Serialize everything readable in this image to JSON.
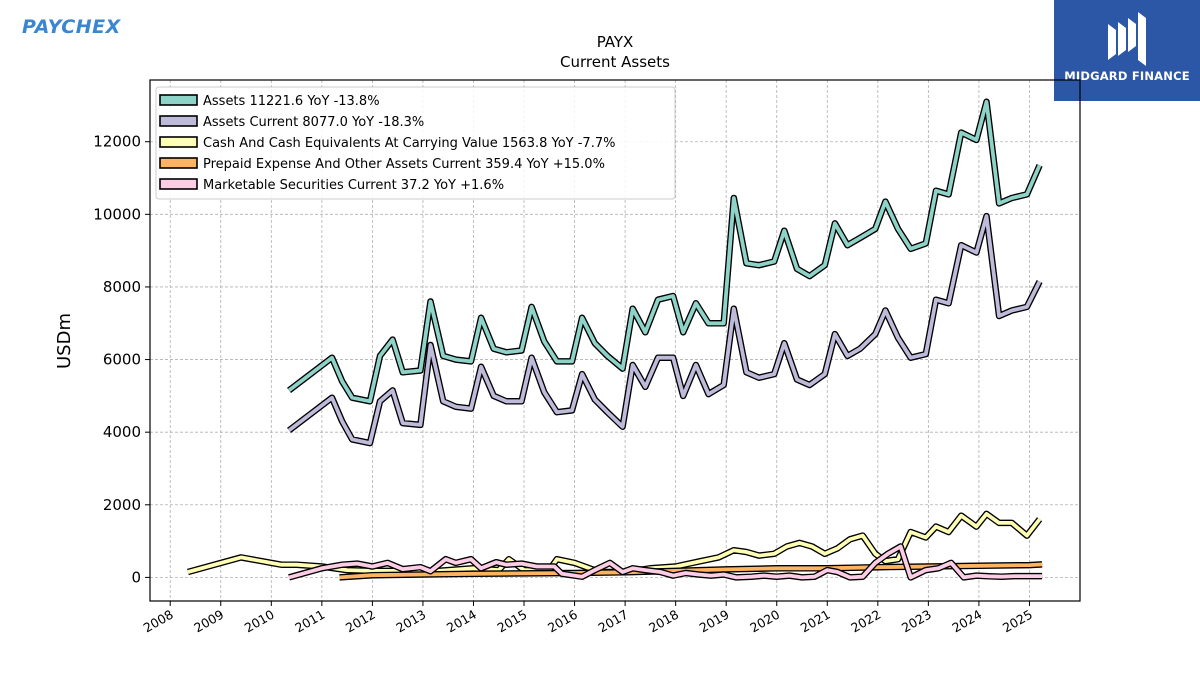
{
  "brand": {
    "left_logo_text": "PAYCHEX",
    "right_logo_text": "MIDGARD FINANCE",
    "right_logo_color": "#2c57a7",
    "left_logo_color": "#3a86d0"
  },
  "chart_data": {
    "type": "line",
    "title": "PAYX",
    "subtitle": "Current  Assets",
    "ylabel": "USDm",
    "xlabel": "",
    "xlim": [
      2007.6,
      2026.0
    ],
    "ylim": [
      -650,
      13700
    ],
    "x_ticks": [
      2008,
      2009,
      2010,
      2011,
      2012,
      2013,
      2014,
      2015,
      2016,
      2017,
      2018,
      2019,
      2020,
      2021,
      2022,
      2023,
      2024,
      2025
    ],
    "y_ticks": [
      0,
      2000,
      4000,
      6000,
      8000,
      10000,
      12000
    ],
    "grid": true,
    "legend_position": "top-left",
    "series": [
      {
        "name": "Assets",
        "legend_label": "Assets  11221.6 YoY -13.8%",
        "color": "#8dd3c7",
        "x": [
          2010.35,
          2011.2,
          2011.4,
          2011.6,
          2011.95,
          2012.15,
          2012.4,
          2012.6,
          2012.95,
          2013.15,
          2013.4,
          2013.65,
          2013.95,
          2014.15,
          2014.4,
          2014.65,
          2014.95,
          2015.15,
          2015.4,
          2015.65,
          2015.95,
          2016.15,
          2016.4,
          2016.65,
          2016.95,
          2017.15,
          2017.4,
          2017.65,
          2017.95,
          2018.15,
          2018.4,
          2018.65,
          2018.95,
          2019.15,
          2019.4,
          2019.65,
          2019.95,
          2020.15,
          2020.4,
          2020.65,
          2020.95,
          2021.15,
          2021.4,
          2021.65,
          2021.95,
          2022.15,
          2022.4,
          2022.65,
          2022.95,
          2023.15,
          2023.4,
          2023.65,
          2023.95,
          2024.15,
          2024.4,
          2024.65,
          2024.95,
          2025.2
        ],
        "values": [
          5150,
          6050,
          5400,
          4950,
          4850,
          6100,
          6550,
          5650,
          5700,
          7600,
          6100,
          6000,
          5950,
          7150,
          6300,
          6200,
          6250,
          7450,
          6500,
          5950,
          5950,
          7150,
          6450,
          6100,
          5750,
          7400,
          6750,
          7650,
          7750,
          6750,
          7550,
          7000,
          7000,
          10450,
          8650,
          8600,
          8700,
          9550,
          8500,
          8300,
          8600,
          9750,
          9150,
          9350,
          9600,
          10350,
          9600,
          9050,
          9200,
          10650,
          10550,
          12250,
          12050,
          13100,
          10300,
          10450,
          10550,
          11350
        ]
      },
      {
        "name": "Assets Current",
        "legend_label": "Assets Current  8077.0 YoY -18.3%",
        "color": "#bebada",
        "x": [
          2010.35,
          2011.2,
          2011.4,
          2011.6,
          2011.95,
          2012.15,
          2012.4,
          2012.6,
          2012.95,
          2013.15,
          2013.4,
          2013.65,
          2013.95,
          2014.15,
          2014.4,
          2014.65,
          2014.95,
          2015.15,
          2015.4,
          2015.65,
          2015.95,
          2016.15,
          2016.4,
          2016.65,
          2016.95,
          2017.15,
          2017.4,
          2017.65,
          2017.95,
          2018.15,
          2018.4,
          2018.65,
          2018.95,
          2019.15,
          2019.4,
          2019.65,
          2019.95,
          2020.15,
          2020.4,
          2020.65,
          2020.95,
          2021.15,
          2021.4,
          2021.65,
          2021.95,
          2022.15,
          2022.4,
          2022.65,
          2022.95,
          2023.15,
          2023.4,
          2023.65,
          2023.95,
          2024.15,
          2024.4,
          2024.65,
          2024.95,
          2025.2
        ],
        "values": [
          4050,
          4950,
          4300,
          3800,
          3700,
          4850,
          5150,
          4250,
          4200,
          6400,
          4850,
          4700,
          4650,
          5800,
          5000,
          4850,
          4850,
          6050,
          5100,
          4550,
          4600,
          5600,
          4900,
          4550,
          4150,
          5850,
          5250,
          6050,
          6050,
          5000,
          5850,
          5050,
          5300,
          7400,
          5650,
          5500,
          5600,
          6450,
          5450,
          5300,
          5600,
          6700,
          6100,
          6300,
          6700,
          7350,
          6600,
          6050,
          6150,
          7650,
          7550,
          9150,
          8950,
          9950,
          7200,
          7350,
          7450,
          8150
        ]
      },
      {
        "name": "Cash And Cash Equivalents At Carrying Value",
        "legend_label": "Cash And Cash Equivalents At Carrying Value  1563.8 YoY -7.7%",
        "color": "#ffffb3",
        "x": [
          2008.35,
          2009.4,
          2010.2,
          2010.5,
          2011.0,
          2011.5,
          2012.0,
          2012.5,
          2013.0,
          2013.5,
          2014.0,
          2014.5,
          2014.7,
          2015.0,
          2015.5,
          2015.65,
          2016.0,
          2016.5,
          2017.0,
          2017.5,
          2018.0,
          2018.5,
          2018.85,
          2019.15,
          2019.4,
          2019.65,
          2019.95,
          2020.2,
          2020.45,
          2020.7,
          2020.95,
          2021.2,
          2021.45,
          2021.7,
          2021.95,
          2022.15,
          2022.4,
          2022.65,
          2022.95,
          2023.15,
          2023.4,
          2023.65,
          2023.95,
          2024.15,
          2024.4,
          2024.65,
          2024.95,
          2025.2
        ],
        "values": [
          150,
          550,
          350,
          350,
          300,
          200,
          180,
          180,
          150,
          200,
          250,
          200,
          500,
          200,
          200,
          500,
          400,
          150,
          150,
          250,
          300,
          450,
          550,
          750,
          700,
          600,
          650,
          850,
          950,
          850,
          650,
          800,
          1050,
          1150,
          650,
          450,
          500,
          1250,
          1100,
          1400,
          1250,
          1700,
          1400,
          1750,
          1500,
          1500,
          1150,
          1600
        ]
      },
      {
        "name": "Prepaid Expense And Other Assets Current",
        "legend_label": "Prepaid Expense And Other Assets Current  359.4 YoY +15.0%",
        "color": "#fdb462",
        "x": [
          2011.35,
          2012.0,
          2013.0,
          2014.0,
          2015.0,
          2016.0,
          2017.0,
          2018.0,
          2019.0,
          2020.0,
          2021.0,
          2022.0,
          2023.0,
          2024.0,
          2025.0,
          2025.25
        ],
        "values": [
          0,
          60,
          80,
          100,
          110,
          120,
          140,
          180,
          220,
          250,
          250,
          280,
          300,
          320,
          340,
          359.4
        ]
      },
      {
        "name": "Marketable Securities Current",
        "legend_label": "Marketable Securities Current  37.2 YoY +1.6%",
        "color": "#fccde5",
        "x": [
          2010.35,
          2011.0,
          2011.4,
          2011.7,
          2012.0,
          2012.3,
          2012.6,
          2012.95,
          2013.15,
          2013.45,
          2013.65,
          2013.95,
          2014.15,
          2014.45,
          2014.65,
          2014.95,
          2015.25,
          2015.6,
          2015.75,
          2016.15,
          2016.4,
          2016.7,
          2016.95,
          2017.15,
          2017.4,
          2017.7,
          2017.95,
          2018.2,
          2018.45,
          2018.7,
          2018.95,
          2019.2,
          2019.5,
          2019.75,
          2020.0,
          2020.25,
          2020.5,
          2020.75,
          2021.0,
          2021.2,
          2021.45,
          2021.7,
          2021.95,
          2022.2,
          2022.45,
          2022.65,
          2022.95,
          2023.2,
          2023.45,
          2023.7,
          2023.95,
          2024.2,
          2024.45,
          2024.7,
          2024.95,
          2025.25
        ],
        "values": [
          0,
          250,
          350,
          380,
          300,
          400,
          230,
          280,
          170,
          500,
          400,
          500,
          250,
          420,
          350,
          380,
          300,
          300,
          100,
          20,
          200,
          400,
          150,
          250,
          200,
          150,
          50,
          120,
          80,
          50,
          80,
          0,
          20,
          50,
          20,
          50,
          0,
          20,
          200,
          150,
          0,
          20,
          400,
          650,
          850,
          0,
          200,
          250,
          400,
          0,
          50,
          30,
          20,
          37,
          37,
          37.2
        ]
      }
    ]
  }
}
